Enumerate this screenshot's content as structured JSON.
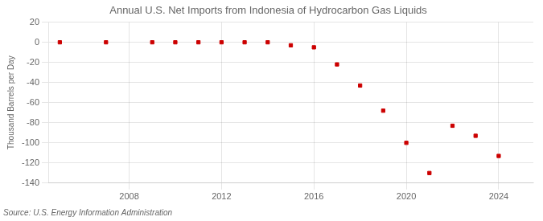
{
  "chart_data": {
    "type": "scatter",
    "title": "Annual U.S. Net Imports from Indonesia of Hydrocarbon Gas Liquids",
    "ylabel": "Thousand Barrels per Day",
    "annotations": [
      "Source: U.S. Energy Information Administration"
    ],
    "x": [
      2005,
      2007,
      2009,
      2010,
      2011,
      2012,
      2013,
      2014,
      2015,
      2016,
      2017,
      2018,
      2019,
      2020,
      2021,
      2022,
      2023,
      2024
    ],
    "values": [
      0,
      0,
      0,
      0,
      0,
      0,
      0,
      0,
      -3,
      -5,
      -22,
      -43,
      -68,
      -100,
      -130,
      -83,
      -93,
      -113
    ],
    "color": "#cc0000",
    "marker": "square",
    "xlim": [
      2004.5,
      2025.5
    ],
    "xticks": [
      2008,
      2012,
      2016,
      2020,
      2024
    ],
    "ylim": [
      -140,
      20
    ],
    "yticks": [
      20,
      0,
      -20,
      -40,
      -60,
      -80,
      -100,
      -120,
      -140
    ],
    "grid": true
  }
}
